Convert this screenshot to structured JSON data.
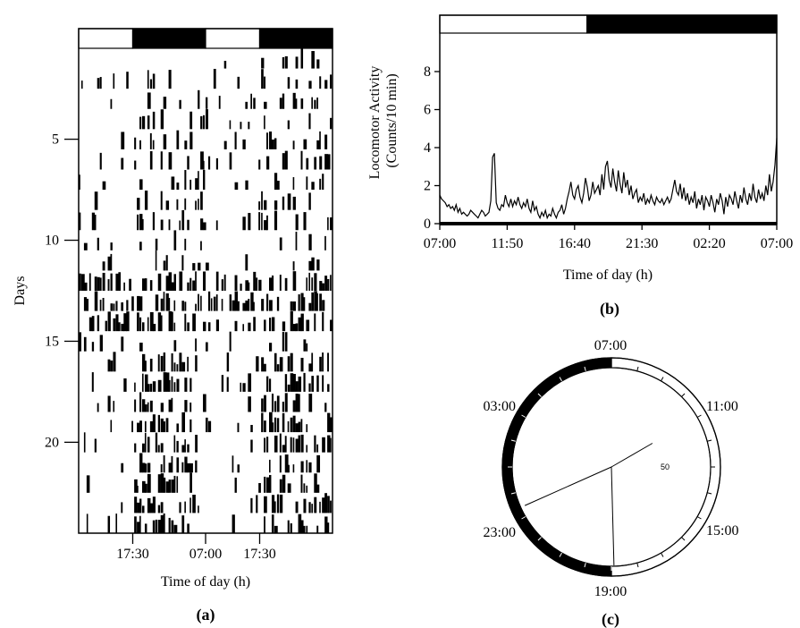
{
  "chart_data": [
    {
      "type": "heatmap",
      "panel_label": "(a)",
      "xlabel": "Time of day (h)",
      "ylabel": "Days",
      "x_tick_labels": [
        "17:30",
        "07:00",
        "17:30"
      ],
      "y_ticks": [
        5,
        10,
        15,
        20
      ],
      "days": 24,
      "light_dark_bar": [
        "light",
        "dark",
        "light",
        "dark"
      ],
      "activity_pattern": "double-plotted actogram; sparse activity days 1-11, dense activity days 12-14 across the cycle, concentrated during dark phase days 16-23"
    },
    {
      "type": "line",
      "panel_label": "(b)",
      "xlabel": "Time of day (h)",
      "ylabel": "Locomotor Activity\n(Counts/10 min)",
      "ylabel_lines": [
        "Locomotor Activity",
        "(Counts/10 min)"
      ],
      "x_tick_labels": [
        "07:00",
        "11:50",
        "16:40",
        "21:30",
        "02:20",
        "07:00"
      ],
      "y_ticks": [
        0,
        2,
        4,
        6,
        8
      ],
      "ylim": [
        0,
        10
      ],
      "light_dark_bar": [
        "light",
        "dark"
      ],
      "series": [
        {
          "values": [
            1.5,
            1.3,
            1.2,
            1.1,
            0.9,
            1.0,
            0.8,
            0.9,
            0.7,
            1.0,
            0.6,
            0.8,
            0.5,
            0.6,
            0.5,
            0.4,
            0.5,
            0.7,
            0.6,
            0.5,
            0.4,
            0.3,
            0.5,
            0.7,
            0.6,
            0.4,
            0.5,
            0.6,
            1.2,
            3.5,
            3.7,
            1.1,
            0.8,
            0.7,
            1.0,
            0.9,
            1.5,
            1.1,
            0.9,
            1.3,
            0.9,
            1.2,
            1.0,
            1.4,
            1.0,
            0.8,
            1.1,
            0.9,
            1.3,
            0.8,
            0.6,
            1.2,
            0.7,
            0.9,
            0.5,
            0.3,
            0.6,
            0.4,
            0.7,
            0.3,
            0.5,
            0.4,
            0.8,
            0.5,
            0.3,
            0.6,
            0.7,
            1.0,
            0.5,
            0.8,
            1.3,
            1.7,
            2.2,
            1.5,
            1.3,
            1.8,
            2.0,
            1.4,
            1.1,
            1.6,
            2.4,
            1.9,
            1.2,
            1.5,
            2.2,
            1.6,
            1.8,
            2.0,
            1.5,
            2.6,
            1.8,
            3.0,
            3.3,
            2.3,
            1.9,
            2.9,
            2.2,
            1.7,
            2.8,
            2.1,
            1.6,
            2.7,
            1.9,
            2.3,
            1.5,
            2.0,
            1.3,
            1.6,
            1.8,
            1.1,
            1.4,
            1.2,
            1.6,
            1.0,
            1.3,
            1.1,
            1.5,
            1.2,
            1.0,
            1.4,
            1.2,
            1.1,
            1.3,
            1.0,
            1.2,
            1.4,
            1.1,
            1.3,
            1.8,
            2.3,
            1.7,
            1.5,
            2.1,
            1.3,
            1.9,
            1.2,
            1.6,
            1.0,
            1.4,
            1.1,
            1.7,
            0.8,
            1.3,
            1.0,
            1.5,
            0.7,
            1.4,
            1.2,
            0.9,
            1.5,
            1.1,
            0.6,
            1.3,
            1.0,
            1.6,
            1.2,
            0.5,
            1.4,
            0.9,
            1.5,
            1.3,
            1.0,
            1.7,
            1.2,
            0.8,
            1.5,
            1.1,
            1.9,
            1.3,
            1.0,
            1.6,
            1.2,
            2.1,
            1.4,
            1.1,
            1.8,
            1.3,
            1.6,
            1.2,
            2.0,
            1.5,
            2.6,
            1.7,
            2.2,
            3.1,
            4.5
          ]
        }
      ]
    },
    {
      "type": "pie",
      "panel_label": "(c)",
      "clock_labels": [
        "07:00",
        "11:00",
        "15:00",
        "19:00",
        "23:00",
        "03:00"
      ],
      "light_segment": [
        "07:00",
        "19:00"
      ],
      "dark_segment": [
        "19:00",
        "07:00"
      ],
      "vectors_hours": [
        18.9,
        23.4,
        11.0
      ],
      "vector_label": "50"
    }
  ]
}
